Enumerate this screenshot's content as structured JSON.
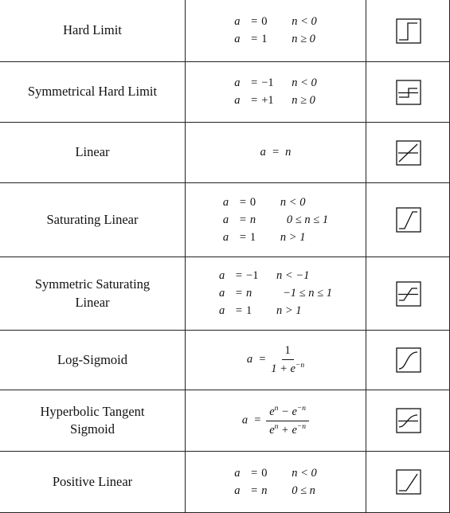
{
  "rows": [
    {
      "name": [
        "Hard Limit"
      ],
      "icon": "hard-limit-icon",
      "lines": [
        [
          "a",
          "=",
          "0",
          "n < 0"
        ],
        [
          "a",
          "=",
          "1",
          "n ≥ 0"
        ]
      ]
    },
    {
      "name": [
        "Symmetrical Hard Limit"
      ],
      "icon": "symmetrical-hard-limit-icon",
      "lines": [
        [
          "a",
          "=",
          "−1",
          "n < 0"
        ],
        [
          "a",
          "=",
          "+1",
          "n ≥ 0"
        ]
      ]
    },
    {
      "name": [
        "Linear"
      ],
      "icon": "linear-icon",
      "single": "a  =  n"
    },
    {
      "name": [
        "Saturating Linear"
      ],
      "icon": "saturating-linear-icon",
      "lines": [
        [
          "a",
          "=",
          "0",
          "n < 0"
        ],
        [
          "a",
          "=",
          "n",
          "0 ≤ n ≤ 1"
        ],
        [
          "a",
          "=",
          "1",
          "n > 1"
        ]
      ]
    },
    {
      "name": [
        "Symmetric Saturating",
        "Linear"
      ],
      "icon": "symmetric-saturating-linear-icon",
      "lines": [
        [
          "a",
          "=",
          "−1",
          "n < −1"
        ],
        [
          "a",
          "=",
          "n",
          "−1 ≤ n ≤ 1"
        ],
        [
          "a",
          "=",
          "1",
          "n > 1"
        ]
      ]
    },
    {
      "name": [
        "Log-Sigmoid"
      ],
      "icon": "log-sigmoid-icon",
      "frac": {
        "lhs": "a  =",
        "num": "1",
        "den_base": "1 + e",
        "den_sup": "−n"
      }
    },
    {
      "name": [
        "Hyperbolic Tangent",
        "Sigmoid"
      ],
      "icon": "tanh-sigmoid-icon",
      "frac2": {
        "lhs": "a  =",
        "num_a": "e",
        "num_a_sup": "n",
        "num_op": " − e",
        "num_b_sup": "−n",
        "den_a": "e",
        "den_a_sup": "n",
        "den_op": " + e",
        "den_b_sup": "−n"
      }
    },
    {
      "name": [
        "Positive Linear"
      ],
      "icon": "positive-linear-icon",
      "lines": [
        [
          "a",
          "=",
          "0",
          "n < 0"
        ],
        [
          "a",
          "=",
          "n",
          "0 ≤ n"
        ]
      ]
    }
  ]
}
